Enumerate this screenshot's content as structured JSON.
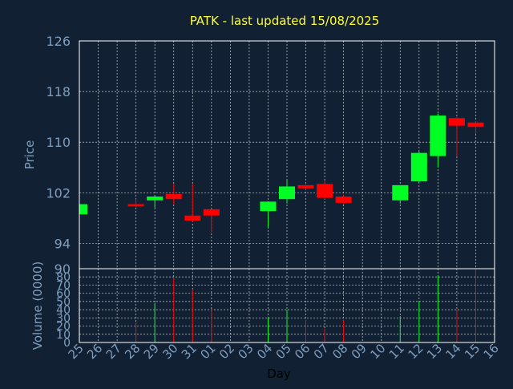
{
  "title": "PATK - last updated 15/08/2025",
  "colors": {
    "background": "#112033",
    "title": "#ffff33",
    "axis_text": "#7f9fbf",
    "frame": "#ffffff",
    "grid": "#c8d0d8",
    "up": "#00ff22",
    "down": "#ff0000"
  },
  "chart_data": [
    {
      "type": "candlestick",
      "ylabel": "Price",
      "ylim": [
        90,
        126
      ],
      "yticks": [
        94,
        102,
        110,
        118,
        126
      ],
      "ytick_labels": [
        "94",
        "102",
        "110",
        "118",
        "126"
      ],
      "grid": true,
      "categories": [
        "25",
        "26",
        "27",
        "28",
        "29",
        "30",
        "31",
        "01",
        "02",
        "03",
        "04",
        "05",
        "06",
        "07",
        "08",
        "09",
        "10",
        "11",
        "12",
        "13",
        "14",
        "15",
        "16"
      ],
      "candles": [
        {
          "x": "25",
          "open": 98.6,
          "close": 100.2,
          "high": 100.2,
          "low": 98.6
        },
        {
          "x": "28",
          "open": 100.2,
          "close": 99.9,
          "high": 101.0,
          "low": 99.7
        },
        {
          "x": "29",
          "open": 100.8,
          "close": 101.4,
          "high": 101.6,
          "low": 99.6
        },
        {
          "x": "30",
          "open": 101.8,
          "close": 101.0,
          "high": 103.4,
          "low": 100.2
        },
        {
          "x": "31",
          "open": 98.4,
          "close": 97.6,
          "high": 103.4,
          "low": 97.4
        },
        {
          "x": "01",
          "open": 99.4,
          "close": 98.4,
          "high": 99.4,
          "low": 95.7
        },
        {
          "x": "04",
          "open": 99.1,
          "close": 100.6,
          "high": 100.6,
          "low": 96.6
        },
        {
          "x": "05",
          "open": 101.0,
          "close": 103.0,
          "high": 104.0,
          "low": 100.3
        },
        {
          "x": "06",
          "open": 103.2,
          "close": 102.7,
          "high": 103.3,
          "low": 102.5
        },
        {
          "x": "07",
          "open": 103.4,
          "close": 101.2,
          "high": 103.9,
          "low": 101.0
        },
        {
          "x": "08",
          "open": 101.4,
          "close": 100.4,
          "high": 101.7,
          "low": 100.2
        },
        {
          "x": "11",
          "open": 100.8,
          "close": 103.2,
          "high": 103.2,
          "low": 100.3
        },
        {
          "x": "12",
          "open": 103.8,
          "close": 108.3,
          "high": 108.5,
          "low": 103.6
        },
        {
          "x": "13",
          "open": 107.8,
          "close": 114.2,
          "high": 114.5,
          "low": 106.0
        },
        {
          "x": "14",
          "open": 113.8,
          "close": 112.6,
          "high": 114.0,
          "low": 107.7
        },
        {
          "x": "15",
          "open": 113.1,
          "close": 112.4,
          "high": 113.3,
          "low": 111.3
        }
      ]
    },
    {
      "type": "bar",
      "ylabel": "Volume (0000)",
      "xlabel": "Day",
      "ylim": [
        0,
        90
      ],
      "yticks": [
        0,
        10,
        20,
        30,
        40,
        50,
        60,
        70,
        80,
        90
      ],
      "ytick_labels": [
        "0",
        "10",
        "20",
        "30",
        "40",
        "50",
        "60",
        "70",
        "80",
        "90"
      ],
      "grid": true,
      "categories": [
        "25",
        "26",
        "27",
        "28",
        "29",
        "30",
        "31",
        "01",
        "02",
        "03",
        "04",
        "05",
        "06",
        "07",
        "08",
        "09",
        "10",
        "11",
        "12",
        "13",
        "14",
        "15",
        "16"
      ],
      "bars": [
        {
          "x": "25",
          "value": 0,
          "direction": "up"
        },
        {
          "x": "28",
          "value": 25,
          "direction": "down"
        },
        {
          "x": "29",
          "value": 48,
          "direction": "up"
        },
        {
          "x": "30",
          "value": 78,
          "direction": "down"
        },
        {
          "x": "31",
          "value": 64,
          "direction": "down"
        },
        {
          "x": "01",
          "value": 41,
          "direction": "down"
        },
        {
          "x": "04",
          "value": 30,
          "direction": "up"
        },
        {
          "x": "05",
          "value": 40,
          "direction": "up"
        },
        {
          "x": "06",
          "value": 28,
          "direction": "down"
        },
        {
          "x": "07",
          "value": 17,
          "direction": "down"
        },
        {
          "x": "08",
          "value": 27,
          "direction": "down"
        },
        {
          "x": "11",
          "value": 32,
          "direction": "up"
        },
        {
          "x": "12",
          "value": 50,
          "direction": "up"
        },
        {
          "x": "13",
          "value": 82,
          "direction": "up"
        },
        {
          "x": "14",
          "value": 40,
          "direction": "down"
        },
        {
          "x": "15",
          "value": 90,
          "direction": "down"
        }
      ]
    }
  ]
}
